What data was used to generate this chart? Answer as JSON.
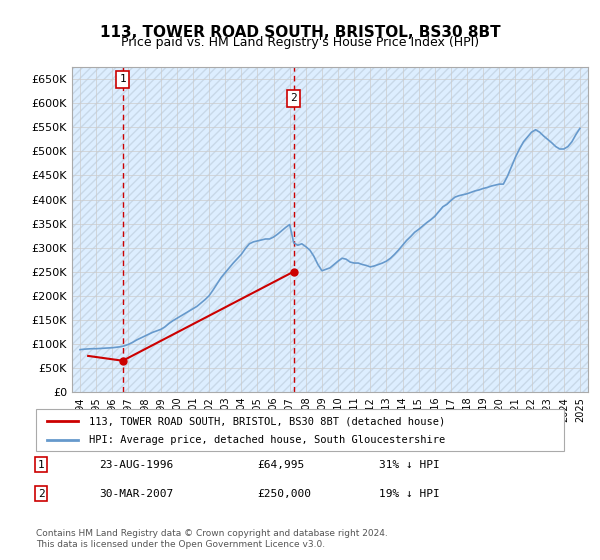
{
  "title1": "113, TOWER ROAD SOUTH, BRISTOL, BS30 8BT",
  "title2": "Price paid vs. HM Land Registry's House Price Index (HPI)",
  "ylabel_ticks": [
    "£0",
    "£50K",
    "£100K",
    "£150K",
    "£200K",
    "£250K",
    "£300K",
    "£350K",
    "£400K",
    "£450K",
    "£500K",
    "£550K",
    "£600K",
    "£650K"
  ],
  "ytick_values": [
    0,
    50000,
    100000,
    150000,
    200000,
    250000,
    300000,
    350000,
    400000,
    450000,
    500000,
    550000,
    600000,
    650000
  ],
  "ylim": [
    0,
    675000
  ],
  "xlim_start": 1993.5,
  "xlim_end": 2025.5,
  "hpi_color": "#6699cc",
  "price_color": "#cc0000",
  "bg_color": "#ddeeff",
  "hatch_color": "#bbccdd",
  "grid_color": "#cccccc",
  "purchase1_year": 1996.645,
  "purchase1_price": 64995,
  "purchase1_label": "1",
  "purchase1_date": "23-AUG-1996",
  "purchase1_amount": "£64,995",
  "purchase1_note": "31% ↓ HPI",
  "purchase2_year": 2007.24,
  "purchase2_price": 250000,
  "purchase2_label": "2",
  "purchase2_date": "30-MAR-2007",
  "purchase2_amount": "£250,000",
  "purchase2_note": "19% ↓ HPI",
  "legend_line1": "113, TOWER ROAD SOUTH, BRISTOL, BS30 8BT (detached house)",
  "legend_line2": "HPI: Average price, detached house, South Gloucestershire",
  "footer": "Contains HM Land Registry data © Crown copyright and database right 2024.\nThis data is licensed under the Open Government Licence v3.0.",
  "hpi_data": {
    "years": [
      1994.0,
      1994.25,
      1994.5,
      1994.75,
      1995.0,
      1995.25,
      1995.5,
      1995.75,
      1996.0,
      1996.25,
      1996.5,
      1996.75,
      1997.0,
      1997.25,
      1997.5,
      1997.75,
      1998.0,
      1998.25,
      1998.5,
      1998.75,
      1999.0,
      1999.25,
      1999.5,
      1999.75,
      2000.0,
      2000.25,
      2000.5,
      2000.75,
      2001.0,
      2001.25,
      2001.5,
      2001.75,
      2002.0,
      2002.25,
      2002.5,
      2002.75,
      2003.0,
      2003.25,
      2003.5,
      2003.75,
      2004.0,
      2004.25,
      2004.5,
      2004.75,
      2005.0,
      2005.25,
      2005.5,
      2005.75,
      2006.0,
      2006.25,
      2006.5,
      2006.75,
      2007.0,
      2007.25,
      2007.5,
      2007.75,
      2008.0,
      2008.25,
      2008.5,
      2008.75,
      2009.0,
      2009.25,
      2009.5,
      2009.75,
      2010.0,
      2010.25,
      2010.5,
      2010.75,
      2011.0,
      2011.25,
      2011.5,
      2011.75,
      2012.0,
      2012.25,
      2012.5,
      2012.75,
      2013.0,
      2013.25,
      2013.5,
      2013.75,
      2014.0,
      2014.25,
      2014.5,
      2014.75,
      2015.0,
      2015.25,
      2015.5,
      2015.75,
      2016.0,
      2016.25,
      2016.5,
      2016.75,
      2017.0,
      2017.25,
      2017.5,
      2017.75,
      2018.0,
      2018.25,
      2018.5,
      2018.75,
      2019.0,
      2019.25,
      2019.5,
      2019.75,
      2020.0,
      2020.25,
      2020.5,
      2020.75,
      2021.0,
      2021.25,
      2021.5,
      2021.75,
      2022.0,
      2022.25,
      2022.5,
      2022.75,
      2023.0,
      2023.25,
      2023.5,
      2023.75,
      2024.0,
      2024.25,
      2024.5,
      2024.75,
      2025.0
    ],
    "values": [
      88000,
      89000,
      89500,
      90000,
      90000,
      90500,
      91000,
      91500,
      92000,
      93000,
      94000,
      96000,
      99000,
      103000,
      108000,
      112000,
      116000,
      120000,
      124000,
      127000,
      130000,
      135000,
      142000,
      148000,
      153000,
      158000,
      163000,
      168000,
      173000,
      178000,
      185000,
      192000,
      200000,
      212000,
      225000,
      238000,
      248000,
      258000,
      268000,
      277000,
      286000,
      298000,
      308000,
      312000,
      314000,
      316000,
      318000,
      318000,
      322000,
      328000,
      335000,
      342000,
      348000,
      310000,
      305000,
      308000,
      302000,
      295000,
      282000,
      265000,
      252000,
      255000,
      258000,
      265000,
      272000,
      278000,
      276000,
      270000,
      268000,
      268000,
      265000,
      263000,
      260000,
      262000,
      265000,
      268000,
      272000,
      278000,
      286000,
      295000,
      305000,
      315000,
      323000,
      332000,
      338000,
      345000,
      352000,
      358000,
      365000,
      375000,
      385000,
      390000,
      398000,
      405000,
      408000,
      410000,
      412000,
      415000,
      418000,
      420000,
      423000,
      425000,
      428000,
      430000,
      432000,
      432000,
      448000,
      468000,
      488000,
      505000,
      520000,
      530000,
      540000,
      545000,
      540000,
      532000,
      525000,
      518000,
      510000,
      505000,
      505000,
      510000,
      520000,
      535000,
      548000
    ]
  },
  "price_data": {
    "years": [
      1994.5,
      1996.645,
      2007.24
    ],
    "values": [
      75000,
      64995,
      250000
    ]
  },
  "xtick_years": [
    1994,
    1995,
    1996,
    1997,
    1998,
    1999,
    2000,
    2001,
    2002,
    2003,
    2004,
    2005,
    2006,
    2007,
    2008,
    2009,
    2010,
    2011,
    2012,
    2013,
    2014,
    2015,
    2016,
    2017,
    2018,
    2019,
    2020,
    2021,
    2022,
    2023,
    2024,
    2025
  ]
}
